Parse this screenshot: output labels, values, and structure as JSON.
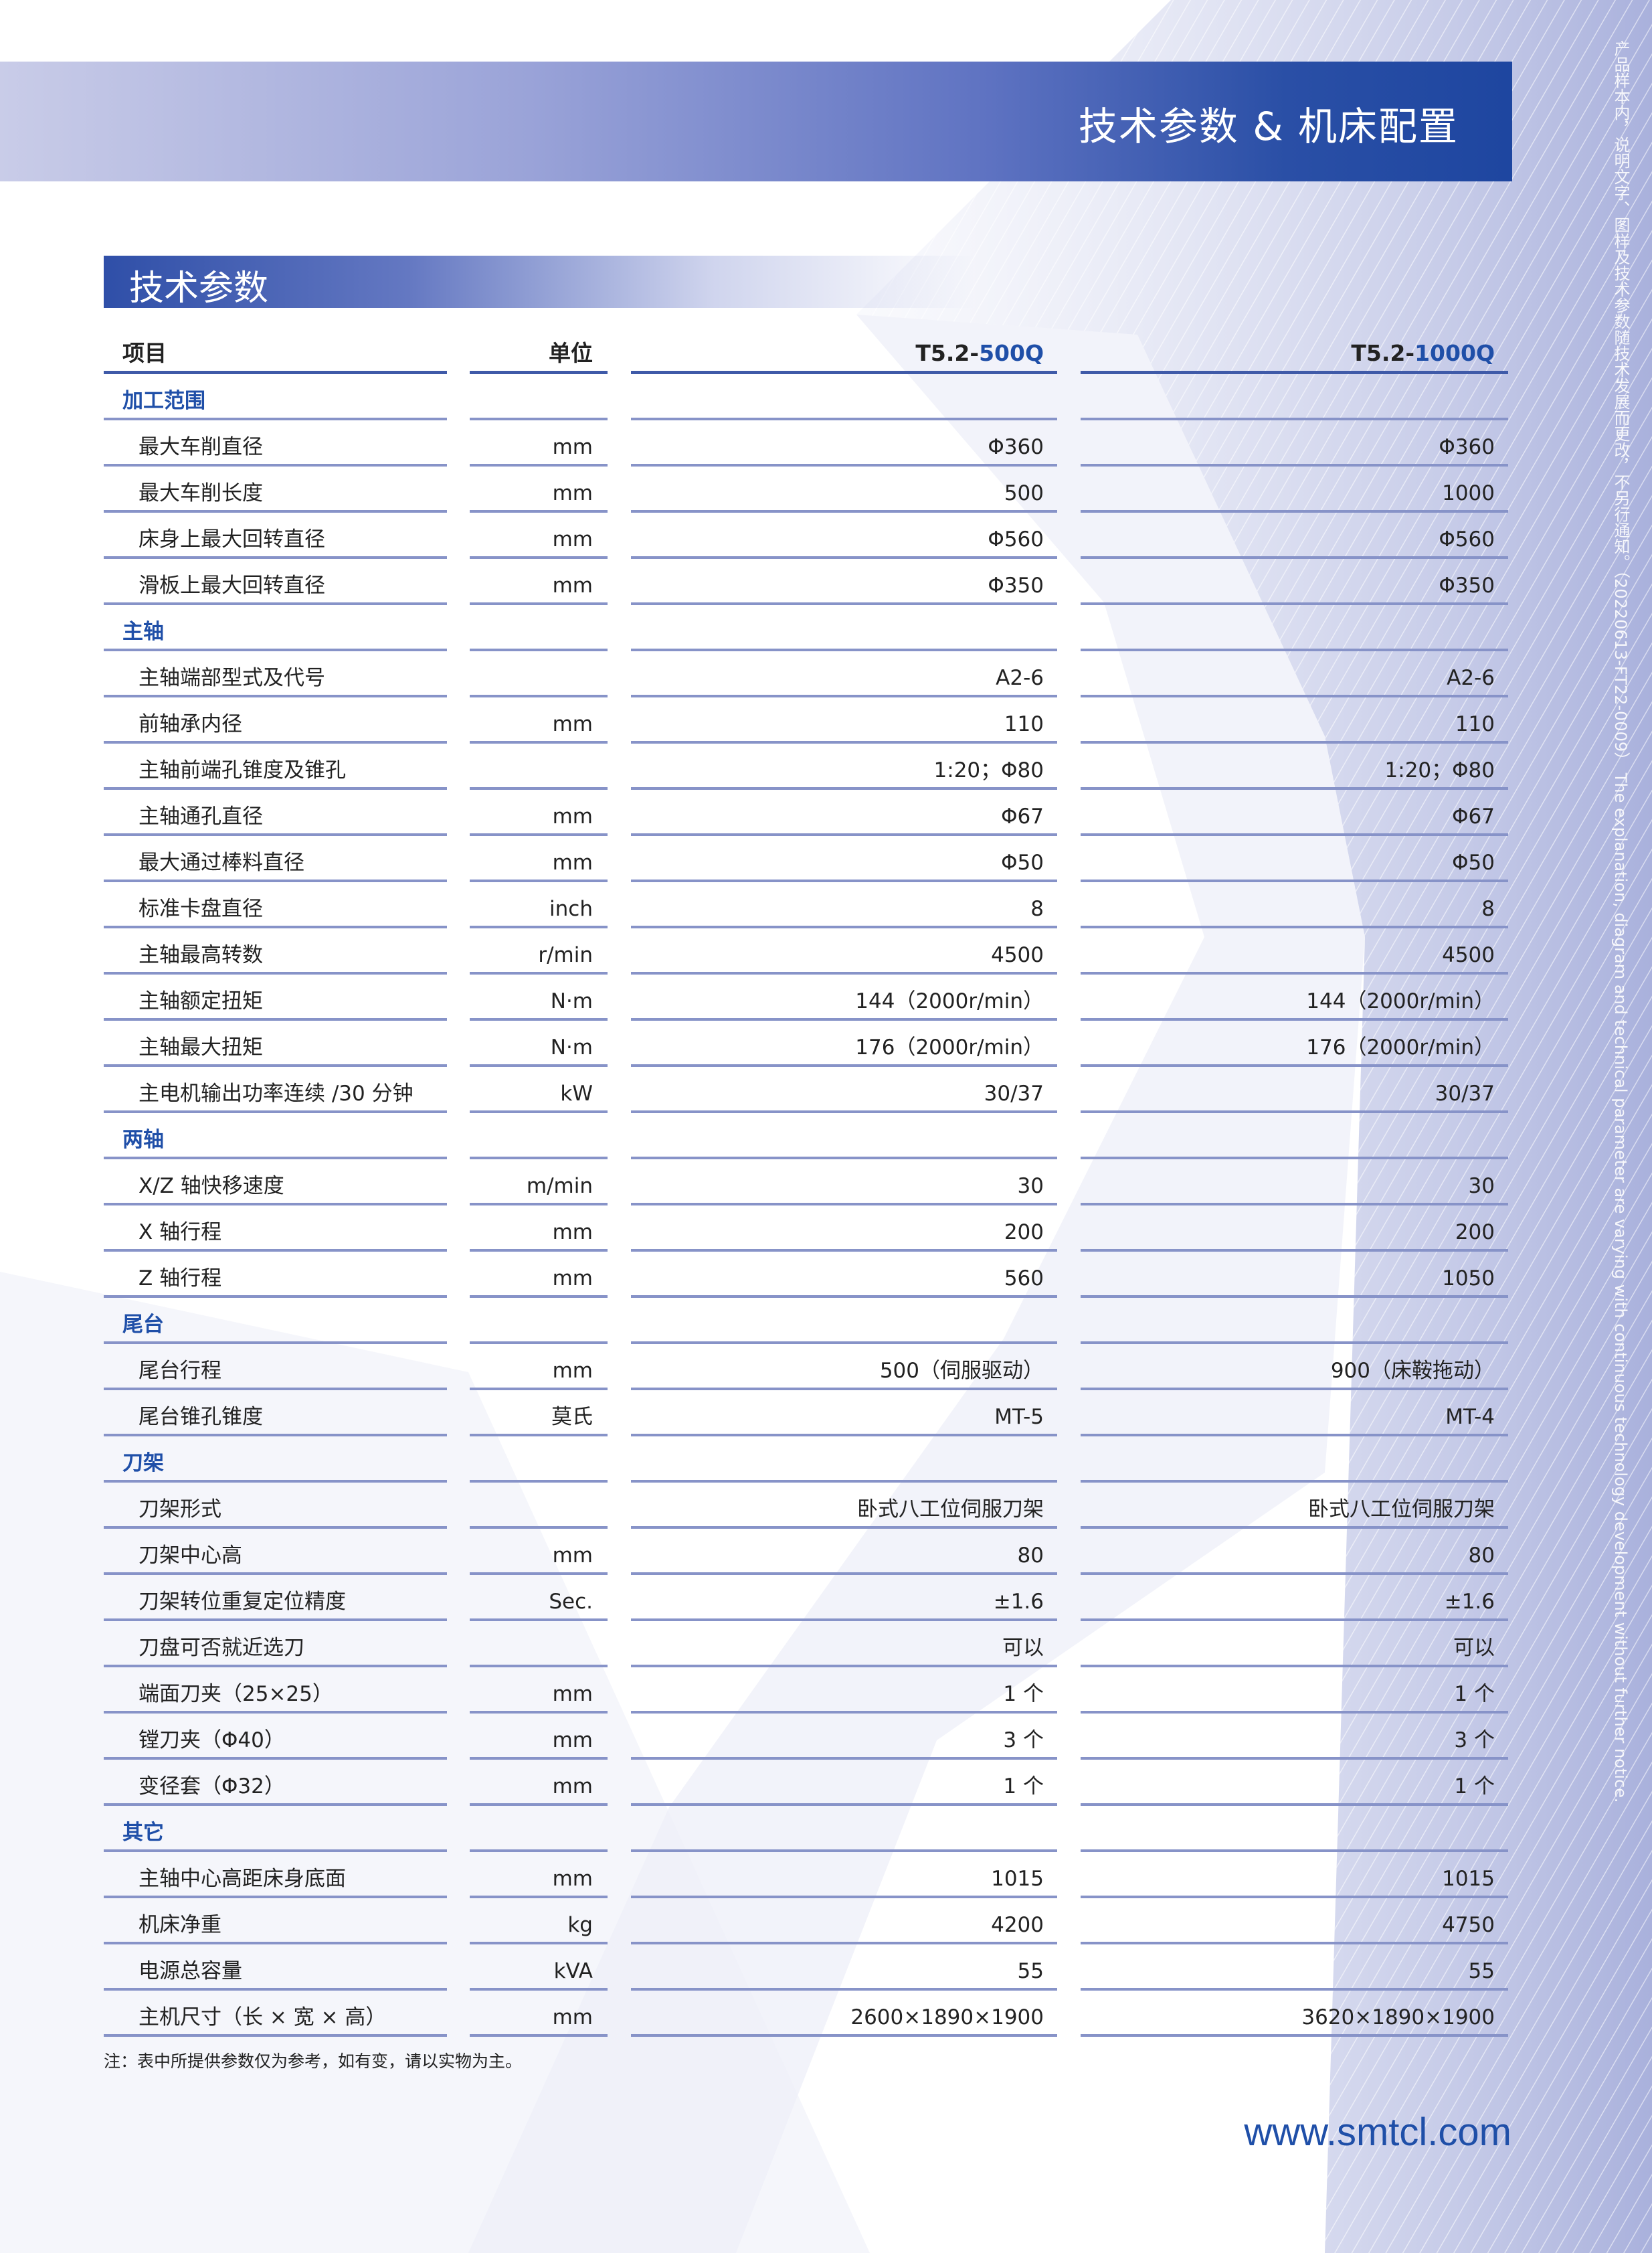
{
  "header": {
    "title": "技术参数 & 机床配置"
  },
  "section": {
    "title": "技术参数"
  },
  "side_note": "产品样本内，说明文字、图样及技术参数随技术发展而更改，不另行通知。（20220613-FT22-0009） The explanation, diagram and technical parameter are varying with continuous technology development without further notice.",
  "table": {
    "headers": {
      "item": "项目",
      "unit": "单位",
      "model1_prefix": "T5.2-",
      "model1_suffix": "500Q",
      "model2_prefix": "T5.2-",
      "model2_suffix": "1000Q"
    },
    "rows": [
      {
        "section": "加工范围"
      },
      {
        "item": "最大车削直径",
        "unit": "mm",
        "v1": "Φ360",
        "v2": "Φ360"
      },
      {
        "item": "最大车削长度",
        "unit": "mm",
        "v1": "500",
        "v2": "1000"
      },
      {
        "item": "床身上最大回转直径",
        "unit": "mm",
        "v1": "Φ560",
        "v2": "Φ560"
      },
      {
        "item": "滑板上最大回转直径",
        "unit": "mm",
        "v1": "Φ350",
        "v2": "Φ350"
      },
      {
        "section": "主轴"
      },
      {
        "item": "主轴端部型式及代号",
        "unit": "",
        "v1": "A2-6",
        "v2": "A2-6"
      },
      {
        "item": "前轴承内径",
        "unit": "mm",
        "v1": "110",
        "v2": "110"
      },
      {
        "item": "主轴前端孔锥度及锥孔",
        "unit": "",
        "v1": "1:20；Φ80",
        "v2": "1:20；Φ80"
      },
      {
        "item": "主轴通孔直径",
        "unit": "mm",
        "v1": "Φ67",
        "v2": "Φ67"
      },
      {
        "item": "最大通过棒料直径",
        "unit": "mm",
        "v1": "Φ50",
        "v2": "Φ50"
      },
      {
        "item": "标准卡盘直径",
        "unit": "inch",
        "v1": "8",
        "v2": "8"
      },
      {
        "item": "主轴最高转数",
        "unit": "r/min",
        "v1": "4500",
        "v2": "4500"
      },
      {
        "item": "主轴额定扭矩",
        "unit": "N·m",
        "v1": "144（2000r/min）",
        "v2": "144（2000r/min）"
      },
      {
        "item": "主轴最大扭矩",
        "unit": "N·m",
        "v1": "176（2000r/min）",
        "v2": "176（2000r/min）"
      },
      {
        "item": "主电机输出功率连续 /30 分钟",
        "unit": "kW",
        "v1": "30/37",
        "v2": "30/37"
      },
      {
        "section": "两轴"
      },
      {
        "item": "X/Z 轴快移速度",
        "unit": "m/min",
        "v1": "30",
        "v2": "30"
      },
      {
        "item": "X 轴行程",
        "unit": "mm",
        "v1": "200",
        "v2": "200"
      },
      {
        "item": "Z 轴行程",
        "unit": "mm",
        "v1": "560",
        "v2": "1050"
      },
      {
        "section": "尾台"
      },
      {
        "item": "尾台行程",
        "unit": "mm",
        "v1": "500（伺服驱动）",
        "v2": "900（床鞍拖动）"
      },
      {
        "item": "尾台锥孔锥度",
        "unit": "莫氏",
        "v1": "MT-5",
        "v2": "MT-4"
      },
      {
        "section": "刀架"
      },
      {
        "item": "刀架形式",
        "unit": "",
        "v1": "卧式八工位伺服刀架",
        "v2": "卧式八工位伺服刀架"
      },
      {
        "item": "刀架中心高",
        "unit": "mm",
        "v1": "80",
        "v2": "80"
      },
      {
        "item": "刀架转位重复定位精度",
        "unit": "Sec.",
        "v1": "±1.6",
        "v2": "±1.6"
      },
      {
        "item": "刀盘可否就近选刀",
        "unit": "",
        "v1": "可以",
        "v2": "可以"
      },
      {
        "item": "端面刀夹（25×25）",
        "unit": "mm",
        "v1": "1 个",
        "v2": "1 个"
      },
      {
        "item": "镗刀夹（Φ40）",
        "unit": "mm",
        "v1": "3 个",
        "v2": "3 个"
      },
      {
        "item": "变径套（Φ32）",
        "unit": "mm",
        "v1": "1 个",
        "v2": "1 个"
      },
      {
        "section": "其它"
      },
      {
        "item": "主轴中心高距床身底面",
        "unit": "mm",
        "v1": "1015",
        "v2": "1015"
      },
      {
        "item": "机床净重",
        "unit": "kg",
        "v1": "4200",
        "v2": "4750"
      },
      {
        "item": "电源总容量",
        "unit": "kVA",
        "v1": "55",
        "v2": "55"
      },
      {
        "item": "主机尺寸（长 × 宽 × 高）",
        "unit": "mm",
        "v1": "2600×1890×1900",
        "v2": "3620×1890×1900"
      }
    ]
  },
  "note": "注：表中所提供参数仅为参考，如有变，请以实物为主。",
  "website": "www.smtcl.com",
  "colors": {
    "brand": "#1f4fa8",
    "line": "#8793c8"
  }
}
